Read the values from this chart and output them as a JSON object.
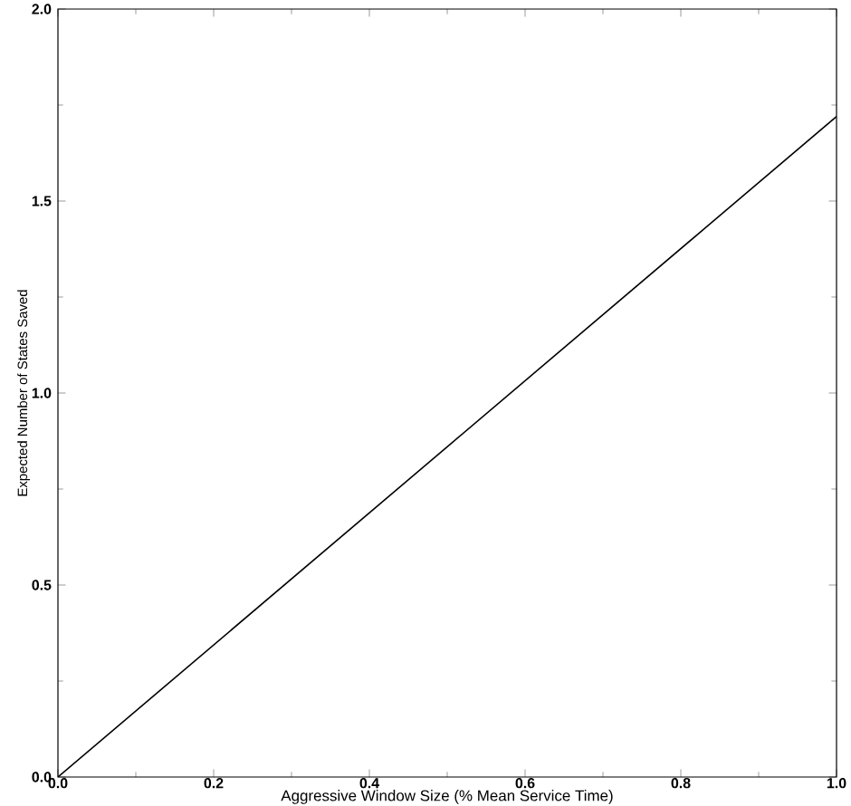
{
  "chart_data": {
    "type": "line",
    "xlabel": "Aggressive Window Size (% Mean Service Time)",
    "ylabel": "Expected Number of States Saved",
    "x": [
      0,
      0.5,
      1.0
    ],
    "series": [
      {
        "color": "#000000",
        "values": [
          0,
          0.86,
          1.72
        ]
      }
    ],
    "xlim": [
      0,
      1.0
    ],
    "ylim": [
      0,
      2.0
    ],
    "xticks": [
      {
        "value": 0,
        "label": "0.0"
      },
      {
        "value": 0.2,
        "label": "0.2"
      },
      {
        "value": 0.4,
        "label": "0.4"
      },
      {
        "value": 0.6,
        "label": "0.6"
      },
      {
        "value": 0.8,
        "label": "0.8"
      },
      {
        "value": 1.0,
        "label": "1.0"
      }
    ],
    "yticks": [
      {
        "value": 0,
        "label": "0.0"
      },
      {
        "value": 0.5,
        "label": "0.5"
      },
      {
        "value": 1.0,
        "label": "1.0"
      },
      {
        "value": 1.5,
        "label": "1.5"
      },
      {
        "value": 2.0,
        "label": "2.0"
      }
    ],
    "grid": false,
    "legend": false,
    "marker": "none",
    "line_style": "solid"
  }
}
